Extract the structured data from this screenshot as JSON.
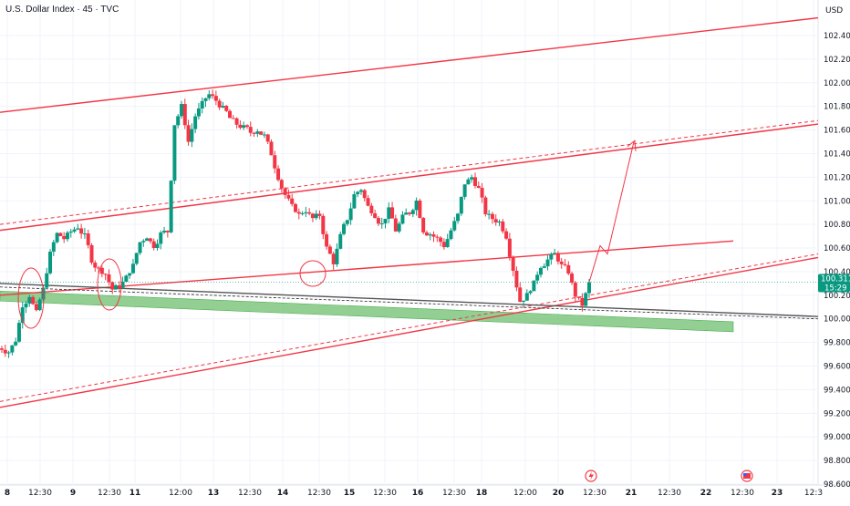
{
  "header": {
    "title": "U.S. Dollar Index · 45 · TVC"
  },
  "price_axis": {
    "currency": "USD"
  },
  "current_price": {
    "value": "100.311",
    "countdown": "15:29",
    "color": "#089981"
  },
  "colors": {
    "up": "#089981",
    "down": "#f23645",
    "line": "#f23645",
    "zone": "#6fbf6f"
  },
  "chart_data": {
    "type": "candlestick",
    "title": "U.S. Dollar Index · 45 · TVC",
    "ylim": [
      98.6,
      102.6
    ],
    "y_ticks": [
      "102.400",
      "102.200",
      "102.000",
      "101.800",
      "101.600",
      "101.400",
      "101.200",
      "101.000",
      "100.800",
      "100.600",
      "100.400",
      "100.200",
      "100.000",
      "99.800",
      "99.600",
      "99.400",
      "99.200",
      "99.000",
      "98.800",
      "98.600"
    ],
    "x_ticks": [
      {
        "label": "8",
        "bold": true
      },
      {
        "label": "12:30",
        "bold": false
      },
      {
        "label": "9",
        "bold": true
      },
      {
        "label": "12:30",
        "bold": false
      },
      {
        "label": "11",
        "bold": true
      },
      {
        "label": "12:00",
        "bold": false
      },
      {
        "label": "13",
        "bold": true
      },
      {
        "label": "12:30",
        "bold": false
      },
      {
        "label": "14",
        "bold": true
      },
      {
        "label": "12:30",
        "bold": false
      },
      {
        "label": "15",
        "bold": true
      },
      {
        "label": "12:30",
        "bold": false
      },
      {
        "label": "16",
        "bold": true
      },
      {
        "label": "12:30",
        "bold": false
      },
      {
        "label": "18",
        "bold": true
      },
      {
        "label": "12:00",
        "bold": false
      },
      {
        "label": "20",
        "bold": true
      },
      {
        "label": "12:30",
        "bold": false
      },
      {
        "label": "21",
        "bold": true
      },
      {
        "label": "12:30",
        "bold": false
      },
      {
        "label": "22",
        "bold": true
      },
      {
        "label": "12:30",
        "bold": false
      },
      {
        "label": "23",
        "bold": true
      },
      {
        "label": "12:3",
        "bold": false
      }
    ],
    "price_path": [
      99.75,
      99.72,
      99.82,
      100.12,
      100.2,
      100.05,
      100.25,
      100.55,
      100.72,
      100.68,
      100.74,
      100.78,
      100.7,
      100.5,
      100.42,
      100.38,
      100.25,
      100.28,
      100.35,
      100.45,
      100.65,
      100.7,
      100.62,
      100.72,
      100.74,
      101.65,
      101.8,
      101.5,
      101.72,
      101.82,
      101.9,
      101.85,
      101.78,
      101.7,
      101.65,
      101.62,
      101.58,
      101.6,
      101.55,
      101.4,
      101.2,
      101.05,
      100.95,
      100.88,
      100.92,
      100.85,
      100.88,
      100.6,
      100.48,
      100.7,
      100.85,
      101.05,
      101.1,
      100.95,
      100.88,
      100.8,
      100.92,
      100.75,
      100.86,
      100.9,
      101.0,
      100.75,
      100.72,
      100.68,
      100.62,
      100.75,
      100.88,
      101.15,
      101.2,
      101.1,
      100.9,
      100.85,
      100.82,
      100.7,
      100.42,
      100.15,
      100.2,
      100.3,
      100.45,
      100.5,
      100.55,
      100.45,
      100.4,
      100.2,
      100.12,
      100.3
    ],
    "trendlines": [
      {
        "name": "upper-channel",
        "from": [
          "8",
          101.75
        ],
        "to": [
          "23",
          102.55
        ],
        "style": "solid"
      },
      {
        "name": "middle-channel",
        "from": [
          "8",
          100.75
        ],
        "to": [
          "23",
          101.65
        ],
        "style": "solid"
      },
      {
        "name": "middle-channel-dashed",
        "from": [
          "8",
          100.8
        ],
        "to": [
          "23",
          101.68
        ],
        "style": "dashed"
      },
      {
        "name": "lower-channel",
        "from": [
          "8",
          99.25
        ],
        "to": [
          "23",
          100.52
        ],
        "style": "solid"
      },
      {
        "name": "lower-channel-dashed",
        "from": [
          "8",
          99.3
        ],
        "to": [
          "23",
          100.55
        ],
        "style": "dashed"
      },
      {
        "name": "short-support",
        "from": [
          "8",
          100.2
        ],
        "to": [
          "22",
          100.66
        ],
        "style": "solid"
      },
      {
        "name": "long-resistance-grey",
        "from": [
          "8",
          100.3
        ],
        "to": [
          "23",
          100.02
        ],
        "style": "solid"
      }
    ],
    "support_zone": {
      "from": [
        "8",
        100.22
      ],
      "to": [
        "22",
        99.96
      ]
    },
    "projection": [
      [
        100.31,
        100.62
      ],
      [
        100.58,
        101.5
      ]
    ],
    "grid": true
  }
}
